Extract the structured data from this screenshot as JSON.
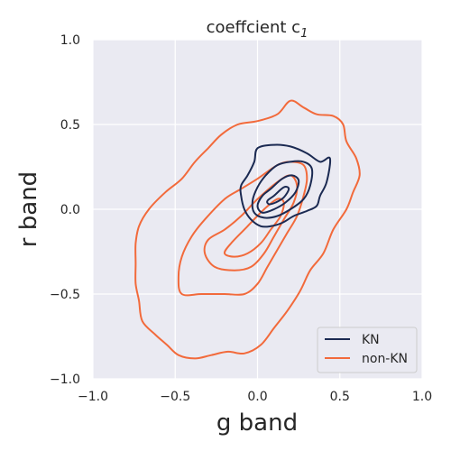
{
  "chart_data": {
    "type": "contour",
    "title": "coeffcient c",
    "title_subscript": "1",
    "xlabel": "g band",
    "ylabel": "r band",
    "xlim": [
      -1.0,
      1.0
    ],
    "ylim": [
      -1.0,
      1.0
    ],
    "xticks": [
      -1.0,
      -0.5,
      0.0,
      0.5,
      1.0
    ],
    "yticks": [
      -1.0,
      -0.5,
      0.0,
      0.5,
      1.0
    ],
    "xtick_labels": [
      "−1.0",
      "−0.5",
      "0.0",
      "0.5",
      "1.0"
    ],
    "ytick_labels": [
      "−1.0",
      "−0.5",
      "0.0",
      "0.5",
      "1.0"
    ],
    "grid": true,
    "background": "#eaeaf2",
    "legend_position": "bottom-right",
    "series": [
      {
        "name": "KN",
        "color": "#1b2a52",
        "levels": [
          [
            [
              0.0,
              0.36
            ],
            [
              0.1,
              0.38
            ],
            [
              0.2,
              0.37
            ],
            [
              0.3,
              0.33
            ],
            [
              0.38,
              0.28
            ],
            [
              0.44,
              0.3
            ],
            [
              0.42,
              0.16
            ],
            [
              0.38,
              0.08
            ],
            [
              0.36,
              0.02
            ],
            [
              0.3,
              -0.01
            ],
            [
              0.22,
              -0.04
            ],
            [
              0.15,
              -0.08
            ],
            [
              0.08,
              -0.1
            ],
            [
              0.02,
              -0.1
            ],
            [
              -0.04,
              -0.06
            ],
            [
              -0.08,
              0.0
            ],
            [
              -0.1,
              0.08
            ],
            [
              -0.1,
              0.14
            ],
            [
              -0.06,
              0.2
            ],
            [
              -0.02,
              0.28
            ],
            [
              0.0,
              0.36
            ]
          ],
          [
            [
              0.05,
              0.2
            ],
            [
              0.12,
              0.26
            ],
            [
              0.2,
              0.28
            ],
            [
              0.28,
              0.28
            ],
            [
              0.33,
              0.24
            ],
            [
              0.32,
              0.14
            ],
            [
              0.28,
              0.06
            ],
            [
              0.2,
              0.0
            ],
            [
              0.12,
              -0.04
            ],
            [
              0.04,
              -0.05
            ],
            [
              -0.02,
              -0.02
            ],
            [
              -0.03,
              0.05
            ],
            [
              0.0,
              0.13
            ],
            [
              0.05,
              0.2
            ]
          ],
          [
            [
              0.08,
              0.12
            ],
            [
              0.15,
              0.18
            ],
            [
              0.21,
              0.2
            ],
            [
              0.25,
              0.17
            ],
            [
              0.23,
              0.1
            ],
            [
              0.17,
              0.04
            ],
            [
              0.1,
              0.0
            ],
            [
              0.03,
              -0.02
            ],
            [
              0.0,
              0.02
            ],
            [
              0.03,
              0.08
            ],
            [
              0.08,
              0.12
            ]
          ],
          [
            [
              0.1,
              0.08
            ],
            [
              0.16,
              0.13
            ],
            [
              0.19,
              0.12
            ],
            [
              0.16,
              0.07
            ],
            [
              0.11,
              0.04
            ],
            [
              0.07,
              0.03
            ],
            [
              0.06,
              0.05
            ],
            [
              0.1,
              0.08
            ]
          ]
        ]
      },
      {
        "name": "non-KN",
        "color": "#f26a3b",
        "levels": [
          [
            [
              -0.12,
              0.5
            ],
            [
              0.0,
              0.52
            ],
            [
              0.12,
              0.56
            ],
            [
              0.2,
              0.64
            ],
            [
              0.28,
              0.6
            ],
            [
              0.36,
              0.56
            ],
            [
              0.46,
              0.55
            ],
            [
              0.52,
              0.5
            ],
            [
              0.54,
              0.4
            ],
            [
              0.6,
              0.3
            ],
            [
              0.62,
              0.2
            ],
            [
              0.58,
              0.1
            ],
            [
              0.54,
              0.0
            ],
            [
              0.46,
              -0.12
            ],
            [
              0.4,
              -0.26
            ],
            [
              0.32,
              -0.36
            ],
            [
              0.26,
              -0.48
            ],
            [
              0.18,
              -0.6
            ],
            [
              0.1,
              -0.7
            ],
            [
              0.02,
              -0.8
            ],
            [
              -0.08,
              -0.85
            ],
            [
              -0.18,
              -0.84
            ],
            [
              -0.28,
              -0.86
            ],
            [
              -0.38,
              -0.88
            ],
            [
              -0.48,
              -0.86
            ],
            [
              -0.55,
              -0.8
            ],
            [
              -0.62,
              -0.74
            ],
            [
              -0.7,
              -0.66
            ],
            [
              -0.72,
              -0.54
            ],
            [
              -0.74,
              -0.44
            ],
            [
              -0.74,
              -0.32
            ],
            [
              -0.74,
              -0.2
            ],
            [
              -0.72,
              -0.1
            ],
            [
              -0.66,
              0.0
            ],
            [
              -0.56,
              0.1
            ],
            [
              -0.46,
              0.18
            ],
            [
              -0.38,
              0.28
            ],
            [
              -0.3,
              0.36
            ],
            [
              -0.22,
              0.44
            ],
            [
              -0.12,
              0.5
            ]
          ],
          [
            [
              -0.2,
              0.06
            ],
            [
              -0.1,
              0.12
            ],
            [
              0.0,
              0.18
            ],
            [
              0.12,
              0.26
            ],
            [
              0.2,
              0.28
            ],
            [
              0.28,
              0.26
            ],
            [
              0.3,
              0.18
            ],
            [
              0.28,
              0.08
            ],
            [
              0.24,
              -0.04
            ],
            [
              0.18,
              -0.14
            ],
            [
              0.12,
              -0.24
            ],
            [
              0.06,
              -0.34
            ],
            [
              0.0,
              -0.44
            ],
            [
              -0.08,
              -0.5
            ],
            [
              -0.2,
              -0.5
            ],
            [
              -0.34,
              -0.5
            ],
            [
              -0.46,
              -0.5
            ],
            [
              -0.48,
              -0.4
            ],
            [
              -0.46,
              -0.28
            ],
            [
              -0.4,
              -0.16
            ],
            [
              -0.32,
              -0.06
            ],
            [
              -0.2,
              0.06
            ]
          ],
          [
            [
              -0.2,
              -0.12
            ],
            [
              -0.1,
              -0.04
            ],
            [
              0.0,
              0.06
            ],
            [
              0.12,
              0.16
            ],
            [
              0.2,
              0.2
            ],
            [
              0.24,
              0.14
            ],
            [
              0.22,
              0.04
            ],
            [
              0.16,
              -0.06
            ],
            [
              0.1,
              -0.16
            ],
            [
              0.04,
              -0.26
            ],
            [
              -0.04,
              -0.34
            ],
            [
              -0.14,
              -0.36
            ],
            [
              -0.26,
              -0.34
            ],
            [
              -0.32,
              -0.26
            ],
            [
              -0.3,
              -0.18
            ],
            [
              -0.2,
              -0.12
            ]
          ],
          [
            [
              -0.16,
              -0.2
            ],
            [
              -0.06,
              -0.1
            ],
            [
              0.04,
              0.0
            ],
            [
              0.12,
              0.06
            ],
            [
              0.16,
              0.04
            ],
            [
              0.14,
              -0.04
            ],
            [
              0.08,
              -0.12
            ],
            [
              0.02,
              -0.2
            ],
            [
              -0.06,
              -0.26
            ],
            [
              -0.14,
              -0.28
            ],
            [
              -0.2,
              -0.26
            ],
            [
              -0.16,
              -0.2
            ]
          ]
        ]
      }
    ]
  }
}
